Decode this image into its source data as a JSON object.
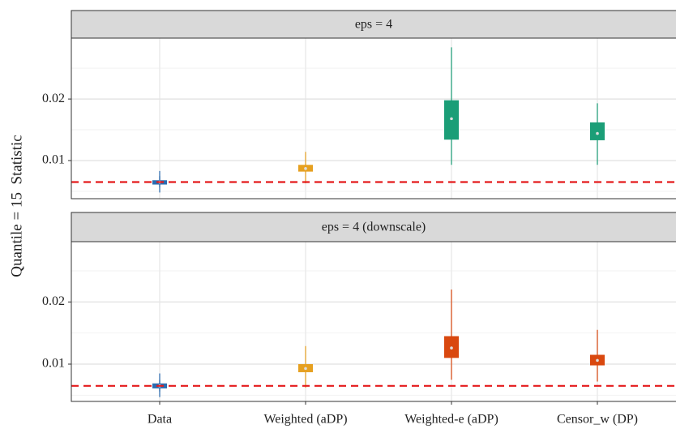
{
  "chart_data": [
    {
      "type": "violin",
      "strip_title": "eps = 4",
      "ylabel": "Quantile = 15  Statistic",
      "ylim": [
        0.0038,
        0.0299
      ],
      "yticks": [
        0.01,
        0.02
      ],
      "minor_grid": [
        0.005,
        0.015,
        0.025
      ],
      "grid": true,
      "reference_line": 0.0065,
      "reference_color": "#e41a1c",
      "colors": [
        "#2b6cb0",
        "#e6a020",
        "#1b9e77",
        "#1b9e77"
      ],
      "stats": [
        {
          "min": 0.0048,
          "q1": 0.0061,
          "median": 0.0065,
          "q3": 0.0068,
          "max": 0.0083
        },
        {
          "min": 0.0063,
          "q1": 0.0082,
          "median": 0.0087,
          "q3": 0.0093,
          "max": 0.0114
        },
        {
          "min": 0.0093,
          "q1": 0.0134,
          "median": 0.0168,
          "q3": 0.0198,
          "max": 0.0284
        },
        {
          "min": 0.0093,
          "q1": 0.0133,
          "median": 0.0144,
          "q3": 0.0162,
          "max": 0.0193
        }
      ]
    },
    {
      "type": "violin",
      "strip_title": "eps = 4 (downscale)",
      "categories": [
        "Data",
        "Weighted (aDP)",
        "Weighted-e (aDP)",
        "Censor_w (DP)"
      ],
      "ylim": [
        0.004,
        0.0297
      ],
      "yticks": [
        0.01,
        0.02
      ],
      "minor_grid": [
        0.005,
        0.015,
        0.025
      ],
      "grid": true,
      "reference_line": 0.0065,
      "reference_color": "#e41a1c",
      "colors": [
        "#2b6cb0",
        "#e6a020",
        "#d9480f",
        "#d9480f"
      ],
      "stats": [
        {
          "min": 0.0047,
          "q1": 0.0061,
          "median": 0.0065,
          "q3": 0.0069,
          "max": 0.0085
        },
        {
          "min": 0.0062,
          "q1": 0.0087,
          "median": 0.0093,
          "q3": 0.01,
          "max": 0.0129
        },
        {
          "min": 0.0075,
          "q1": 0.011,
          "median": 0.0126,
          "q3": 0.0145,
          "max": 0.022
        },
        {
          "min": 0.0072,
          "q1": 0.0098,
          "median": 0.0106,
          "q3": 0.0115,
          "max": 0.0155
        }
      ]
    }
  ]
}
